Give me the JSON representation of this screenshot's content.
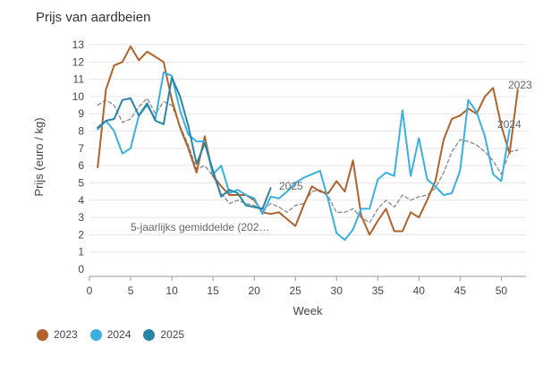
{
  "chart_data": {
    "type": "line",
    "title": "Prijs van aardbeien",
    "xlabel": "Week",
    "ylabel": "Prijs (euro / kg)",
    "xlim": [
      0,
      53
    ],
    "ylim": [
      0,
      13
    ],
    "x_ticks": [
      0,
      5,
      10,
      15,
      20,
      25,
      30,
      35,
      40,
      45,
      50
    ],
    "y_ticks": [
      0,
      1,
      2,
      3,
      4,
      5,
      6,
      7,
      8,
      9,
      10,
      11,
      12,
      13
    ],
    "grid": true,
    "legend_position": "bottom-left",
    "series": [
      {
        "name": "2023",
        "color": "#b0622b",
        "style": "solid",
        "x": [
          1,
          2,
          3,
          4,
          5,
          6,
          7,
          8,
          9,
          10,
          11,
          12,
          13,
          14,
          15,
          16,
          17,
          18,
          19,
          20,
          21,
          22,
          23,
          24,
          25,
          26,
          27,
          28,
          29,
          30,
          31,
          32,
          33,
          34,
          35,
          36,
          37,
          38,
          39,
          40,
          41,
          42,
          43,
          44,
          45,
          46,
          47,
          48,
          49,
          50,
          51,
          52
        ],
        "values": [
          5.9,
          10.4,
          11.8,
          12.0,
          12.9,
          12.1,
          12.6,
          12.3,
          12.0,
          9.8,
          8.2,
          7.0,
          5.6,
          7.7,
          5.4,
          4.8,
          4.3,
          4.3,
          4.3,
          4.0,
          3.3,
          3.2,
          3.3,
          2.9,
          2.5,
          3.7,
          4.8,
          4.5,
          4.4,
          5.1,
          4.5,
          6.3,
          3.1,
          2.0,
          2.8,
          3.5,
          2.2,
          2.2,
          3.3,
          3.0,
          4.0,
          5.1,
          7.5,
          8.7,
          8.9,
          9.3,
          9.0,
          10.0,
          10.5,
          8.3,
          6.7,
          10.4
        ],
        "end_label": "2023"
      },
      {
        "name": "2024",
        "color": "#3ab0e2",
        "style": "solid",
        "x": [
          1,
          2,
          3,
          4,
          5,
          6,
          7,
          8,
          9,
          10,
          11,
          12,
          13,
          14,
          15,
          16,
          17,
          18,
          19,
          20,
          21,
          22,
          23,
          24,
          25,
          26,
          27,
          28,
          29,
          30,
          31,
          32,
          33,
          34,
          35,
          36,
          37,
          38,
          39,
          40,
          41,
          42,
          43,
          44,
          45,
          46,
          47,
          48,
          49,
          50,
          51
        ],
        "values": [
          8.1,
          8.6,
          8.0,
          6.7,
          7.0,
          8.9,
          9.5,
          8.7,
          11.4,
          11.2,
          9.2,
          7.8,
          7.4,
          7.4,
          5.5,
          6.0,
          4.4,
          4.6,
          4.3,
          4.1,
          3.2,
          4.2,
          4.1,
          4.5,
          5.0,
          5.3,
          5.5,
          5.7,
          4.0,
          2.1,
          1.7,
          2.3,
          3.5,
          3.5,
          5.2,
          5.6,
          5.4,
          9.2,
          5.4,
          7.6,
          5.2,
          4.8,
          4.3,
          4.4,
          5.7,
          9.8,
          9.1,
          7.7,
          5.5,
          5.1,
          8.1
        ],
        "end_label": "2024"
      },
      {
        "name": "2025",
        "color": "#2b84a6",
        "style": "solid",
        "x": [
          1,
          2,
          3,
          4,
          5,
          6,
          7,
          8,
          9,
          10,
          11,
          12,
          13,
          14,
          15,
          16,
          17,
          18,
          19,
          20,
          21,
          22
        ],
        "values": [
          8.2,
          8.6,
          8.7,
          9.8,
          9.9,
          8.9,
          9.6,
          8.6,
          8.4,
          11.1,
          10.0,
          8.3,
          6.1,
          7.3,
          5.7,
          4.2,
          4.6,
          4.4,
          3.7,
          3.6,
          3.5,
          4.7
        ],
        "end_label": "2025"
      },
      {
        "name": "5-jaarlijks gemiddelde (202…",
        "color": "#888888",
        "style": "dashed",
        "x": [
          1,
          2,
          3,
          4,
          5,
          6,
          7,
          8,
          9,
          10,
          11,
          12,
          13,
          14,
          15,
          16,
          17,
          18,
          19,
          20,
          21,
          22,
          23,
          24,
          25,
          26,
          27,
          28,
          29,
          30,
          31,
          32,
          33,
          34,
          35,
          36,
          37,
          38,
          39,
          40,
          41,
          42,
          43,
          44,
          45,
          46,
          47,
          48,
          49,
          50,
          51,
          52
        ],
        "values": [
          9.5,
          9.8,
          9.5,
          8.5,
          8.7,
          9.4,
          9.9,
          9.0,
          9.7,
          9.5,
          8.3,
          7.2,
          5.8,
          6.0,
          5.4,
          4.4,
          3.8,
          4.0,
          3.8,
          3.7,
          3.4,
          3.8,
          3.6,
          3.3,
          3.7,
          3.8,
          4.5,
          4.6,
          4.2,
          3.3,
          3.3,
          3.5,
          3.0,
          2.7,
          3.5,
          4.0,
          3.6,
          4.3,
          4.0,
          4.2,
          4.3,
          4.7,
          5.6,
          6.8,
          7.5,
          7.4,
          7.2,
          6.8,
          6.3,
          5.5,
          6.8,
          6.9
        ],
        "end_label": "5-jaarlijks gemiddelde (202…"
      }
    ]
  }
}
